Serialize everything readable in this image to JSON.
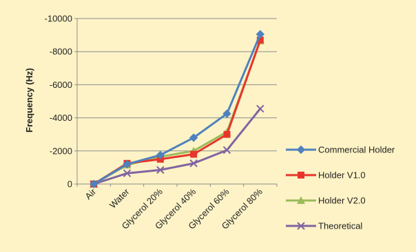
{
  "chart_data": {
    "type": "line",
    "ylabel": "Frequency (Hz)",
    "xlabel": "",
    "categories": [
      "Air",
      "Water",
      "Glycerol 20%",
      "Glycerol 40%",
      "Glycerol 60%",
      "Glycerol 80%"
    ],
    "ylim": [
      0,
      -10000
    ],
    "yticks": [
      0,
      -2000,
      -4000,
      -6000,
      -8000,
      -10000
    ],
    "ytick_labels": [
      "0",
      "-2000",
      "-4000",
      "-6000",
      "-8000",
      "-10000"
    ],
    "y_axis_inverted": true,
    "grid": "horizontal",
    "legend_position": "right",
    "series": [
      {
        "name": "Commercial Holder",
        "color": "#4f81bd",
        "marker": "diamond",
        "values": [
          0,
          -1200,
          -1750,
          -2800,
          -4250,
          -9050
        ]
      },
      {
        "name": "Holder V1.0",
        "color": "#e8352b",
        "marker": "square",
        "values": [
          0,
          -1250,
          -1500,
          -1800,
          -3000,
          -8700
        ]
      },
      {
        "name": "Holder V2.0",
        "color": "#9bbb59",
        "marker": "triangle",
        "values": [
          0,
          -1150,
          -1650,
          -2000,
          -3150,
          -8650
        ]
      },
      {
        "name": "Theoretical",
        "color": "#8064a2",
        "marker": "x",
        "values": [
          0,
          -650,
          -850,
          -1250,
          -2050,
          -4550
        ]
      }
    ]
  }
}
